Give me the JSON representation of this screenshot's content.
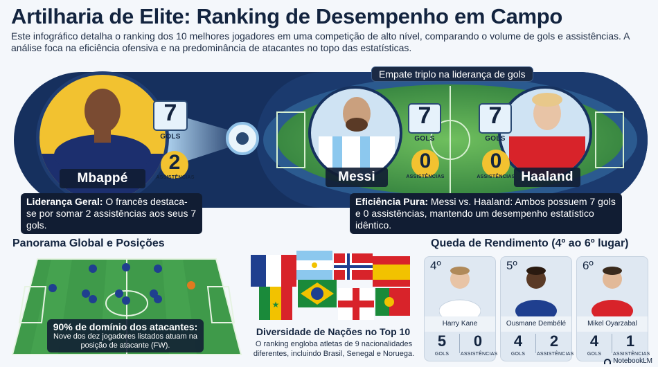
{
  "header": {
    "title": "Artilharia de Elite: Ranking de Desempenho em Campo",
    "intro": "Este infográfico detalha o ranking dos 10 melhores jogadores em uma competição de alto nível, comparando o volume de gols e assistências. A análise foca na eficiência ofensiva e na predominância de atacantes no topo das estatísticas."
  },
  "top": {
    "badge": "Empate triplo na liderança de gols",
    "goals_label": "GOLS",
    "assists_label": "ASSISTÊNCIAS",
    "players": [
      {
        "name": "Mbappé",
        "goals": "7",
        "assists": "2"
      },
      {
        "name": "Messi",
        "goals": "7",
        "assists": "0"
      },
      {
        "name": "Haaland",
        "goals": "7",
        "assists": "0"
      }
    ],
    "callout_left": {
      "bold": "Liderança Geral:",
      "text": " O francês destaca-se por somar 2 assistências aos seus 7 gols."
    },
    "callout_right": {
      "bold": "Eficiência Pura:",
      "text": " Messi vs. Haaland: Ambos possuem 7 gols e 0 assistências, mantendo um desempenho estatístico idêntico."
    }
  },
  "panorama": {
    "title": "Panorama Global e Posições",
    "headline": "90% de domínio dos atacantes:",
    "text": "Nove dos dez jogadores listados atuam na posição de atacante (FW)."
  },
  "nations": {
    "title": "Diversidade de Nações no Top 10",
    "text": "O ranking engloba atletas de 9 nacionalidades diferentes, incluindo Brasil, Senegal e Noruega."
  },
  "decline": {
    "title": "Queda de Rendimento (4º ao 6º lugar)",
    "goals_label": "GOLS",
    "assists_label": "ASSISTÊNCIAS",
    "cards": [
      {
        "rank": "4º",
        "name": "Harry Kane",
        "goals": "5",
        "assists": "0",
        "shirt": "#ffffff",
        "accent": "#1b2a6b"
      },
      {
        "rank": "5º",
        "name": "Ousmane Dembélé",
        "goals": "4",
        "assists": "2",
        "shirt": "#1f3f8f",
        "accent": "#ffffff"
      },
      {
        "rank": "6º",
        "name": "Mikel Oyarzabal",
        "goals": "4",
        "assists": "1",
        "shirt": "#d8232a",
        "accent": "#f2c200"
      }
    ]
  },
  "footer": {
    "brand": "NotebookLM"
  }
}
